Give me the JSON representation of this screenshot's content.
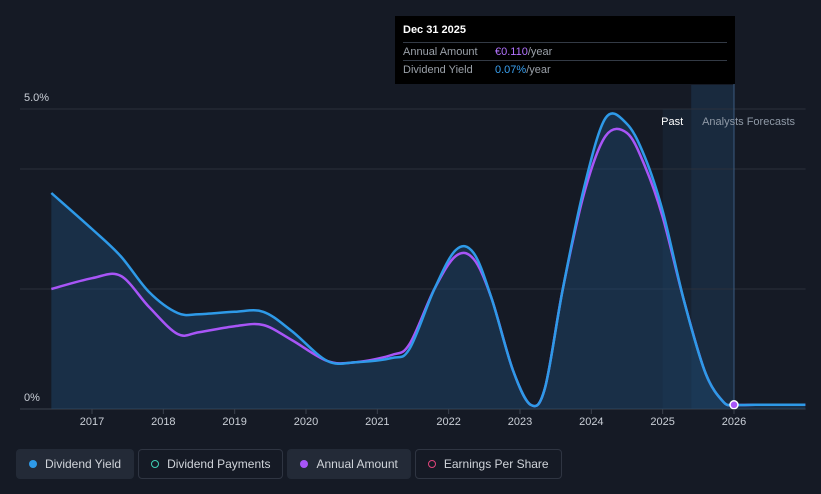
{
  "tooltip": {
    "date": "Dec 31 2025",
    "annual_amount_label": "Annual Amount",
    "annual_amount_value": "€0.110",
    "annual_amount_unit": "/year",
    "dividend_yield_label": "Dividend Yield",
    "dividend_yield_value": "0.07%",
    "dividend_yield_unit": "/year"
  },
  "regions": {
    "past": "Past",
    "forecast": "Analysts Forecasts"
  },
  "legend": [
    {
      "label": "Dividend Yield",
      "color": "#2e9ae8",
      "style": "filled",
      "active": true
    },
    {
      "label": "Dividend Payments",
      "color": "#3fd1b5",
      "style": "ring",
      "active": false
    },
    {
      "label": "Annual Amount",
      "color": "#a855f7",
      "style": "filled",
      "active": true
    },
    {
      "label": "Earnings Per Share",
      "color": "#e0457b",
      "style": "ring",
      "active": false
    }
  ],
  "chart_data": {
    "type": "line",
    "y_tick_labels": [
      "5.0%",
      "0%"
    ],
    "ylim": [
      0,
      5.0
    ],
    "x_tick_labels": [
      "2017",
      "2018",
      "2019",
      "2020",
      "2021",
      "2022",
      "2023",
      "2024",
      "2025",
      "2026"
    ],
    "xlim": [
      2016.4,
      2027.0
    ],
    "grid": true,
    "past_end": 2025.0,
    "forecast_start": 2025.4,
    "series": [
      {
        "name": "Dividend Yield",
        "color": "#2e9ae8",
        "x": [
          2016.43,
          2017.0,
          2017.4,
          2017.8,
          2018.2,
          2018.5,
          2019.0,
          2019.4,
          2019.8,
          2020.3,
          2020.7,
          2021.2,
          2021.45,
          2021.8,
          2022.1,
          2022.35,
          2022.6,
          2022.9,
          2023.15,
          2023.35,
          2023.6,
          2023.9,
          2024.2,
          2024.5,
          2024.75,
          2025.0,
          2025.3,
          2025.6,
          2025.85,
          2026.0,
          2026.3,
          2027.0
        ],
        "y": [
          3.6,
          3.0,
          2.55,
          1.95,
          1.6,
          1.58,
          1.62,
          1.62,
          1.3,
          0.8,
          0.78,
          0.85,
          1.0,
          2.0,
          2.65,
          2.6,
          1.85,
          0.65,
          0.07,
          0.35,
          2.0,
          3.7,
          4.85,
          4.75,
          4.2,
          3.3,
          1.8,
          0.6,
          0.12,
          0.07,
          0.07,
          0.07
        ]
      },
      {
        "name": "Annual Amount",
        "color": "#a855f7",
        "x": [
          2016.43,
          2017.0,
          2017.4,
          2017.8,
          2018.2,
          2018.5,
          2019.0,
          2019.4,
          2019.8,
          2020.3,
          2020.7,
          2021.2,
          2021.45,
          2021.8,
          2022.1,
          2022.35,
          2022.6,
          2022.9,
          2023.15,
          2023.35,
          2023.6,
          2023.9,
          2024.2,
          2024.5,
          2024.75,
          2025.0,
          2025.3,
          2025.6,
          2025.85,
          2026.0,
          2026.3,
          2027.0
        ],
        "y": [
          2.0,
          2.18,
          2.22,
          1.7,
          1.25,
          1.28,
          1.38,
          1.4,
          1.15,
          0.8,
          0.78,
          0.9,
          1.08,
          2.0,
          2.55,
          2.5,
          1.85,
          0.65,
          0.07,
          0.35,
          2.0,
          3.6,
          4.55,
          4.6,
          4.05,
          3.2,
          1.8,
          0.6,
          0.12,
          0.07,
          0.07,
          0.07
        ]
      }
    ],
    "highlight_point": {
      "x": 2026.0,
      "y": 0.07
    }
  }
}
